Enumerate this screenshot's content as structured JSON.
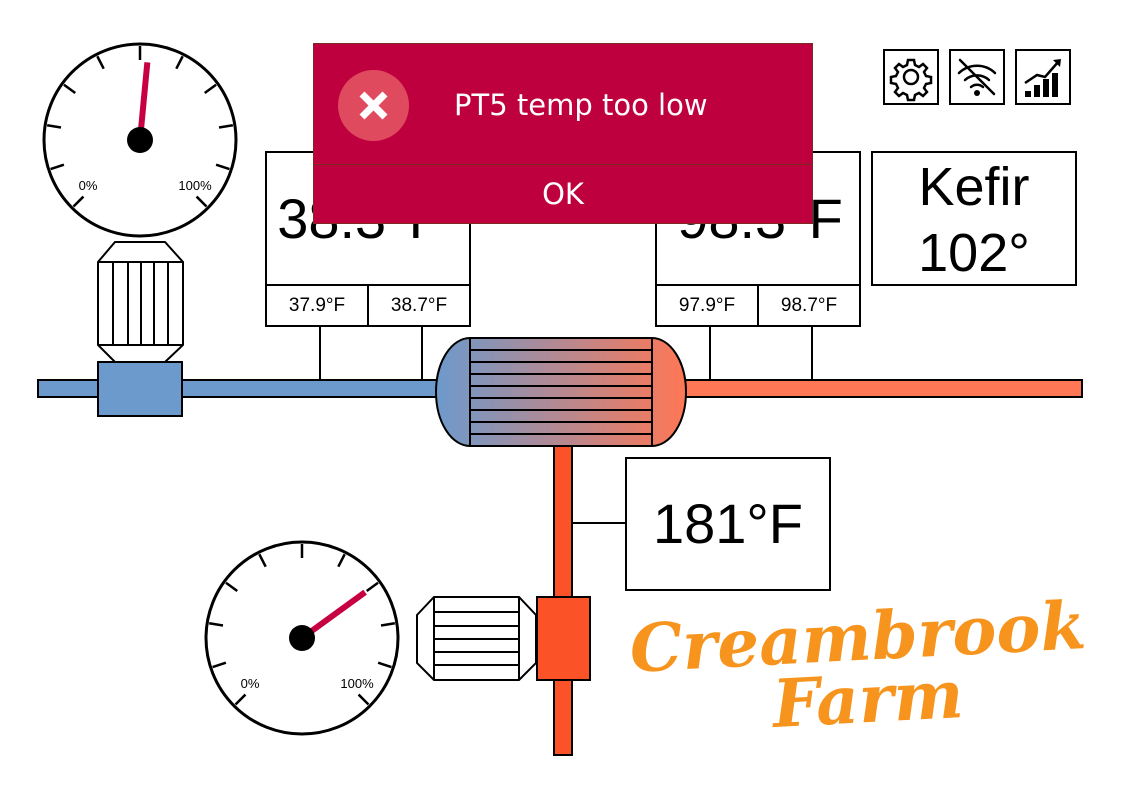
{
  "alert": {
    "message": "PT5 temp too low",
    "button_label": "OK",
    "color": "#bf003f"
  },
  "toolbar": {
    "icons": [
      "gear-icon",
      "wifi-off-icon",
      "trend-chart-icon"
    ]
  },
  "sensors": {
    "left_main": "38.3°F",
    "left_sub_1": "37.9°F",
    "left_sub_2": "38.7°F",
    "right_main": "98.3°F",
    "right_sub_1": "97.9°F",
    "right_sub_2": "98.7°F",
    "bottom_main": "181°F"
  },
  "product": {
    "name": "Kefir",
    "temperature": "102°"
  },
  "gauges": {
    "top": {
      "min_label": "0%",
      "max_label": "100%",
      "level_percent": 52
    },
    "bottom": {
      "min_label": "0%",
      "max_label": "100%",
      "level_percent": 70
    }
  },
  "brand": {
    "line1": "Creambrook",
    "line2": "Farm",
    "color": "#f7941d"
  },
  "colors": {
    "cold_pipe": "#6d9acc",
    "hot_pipe": "#ff7755",
    "hot_vertical": "#fc5228",
    "gauge_needle": "#c70042"
  }
}
